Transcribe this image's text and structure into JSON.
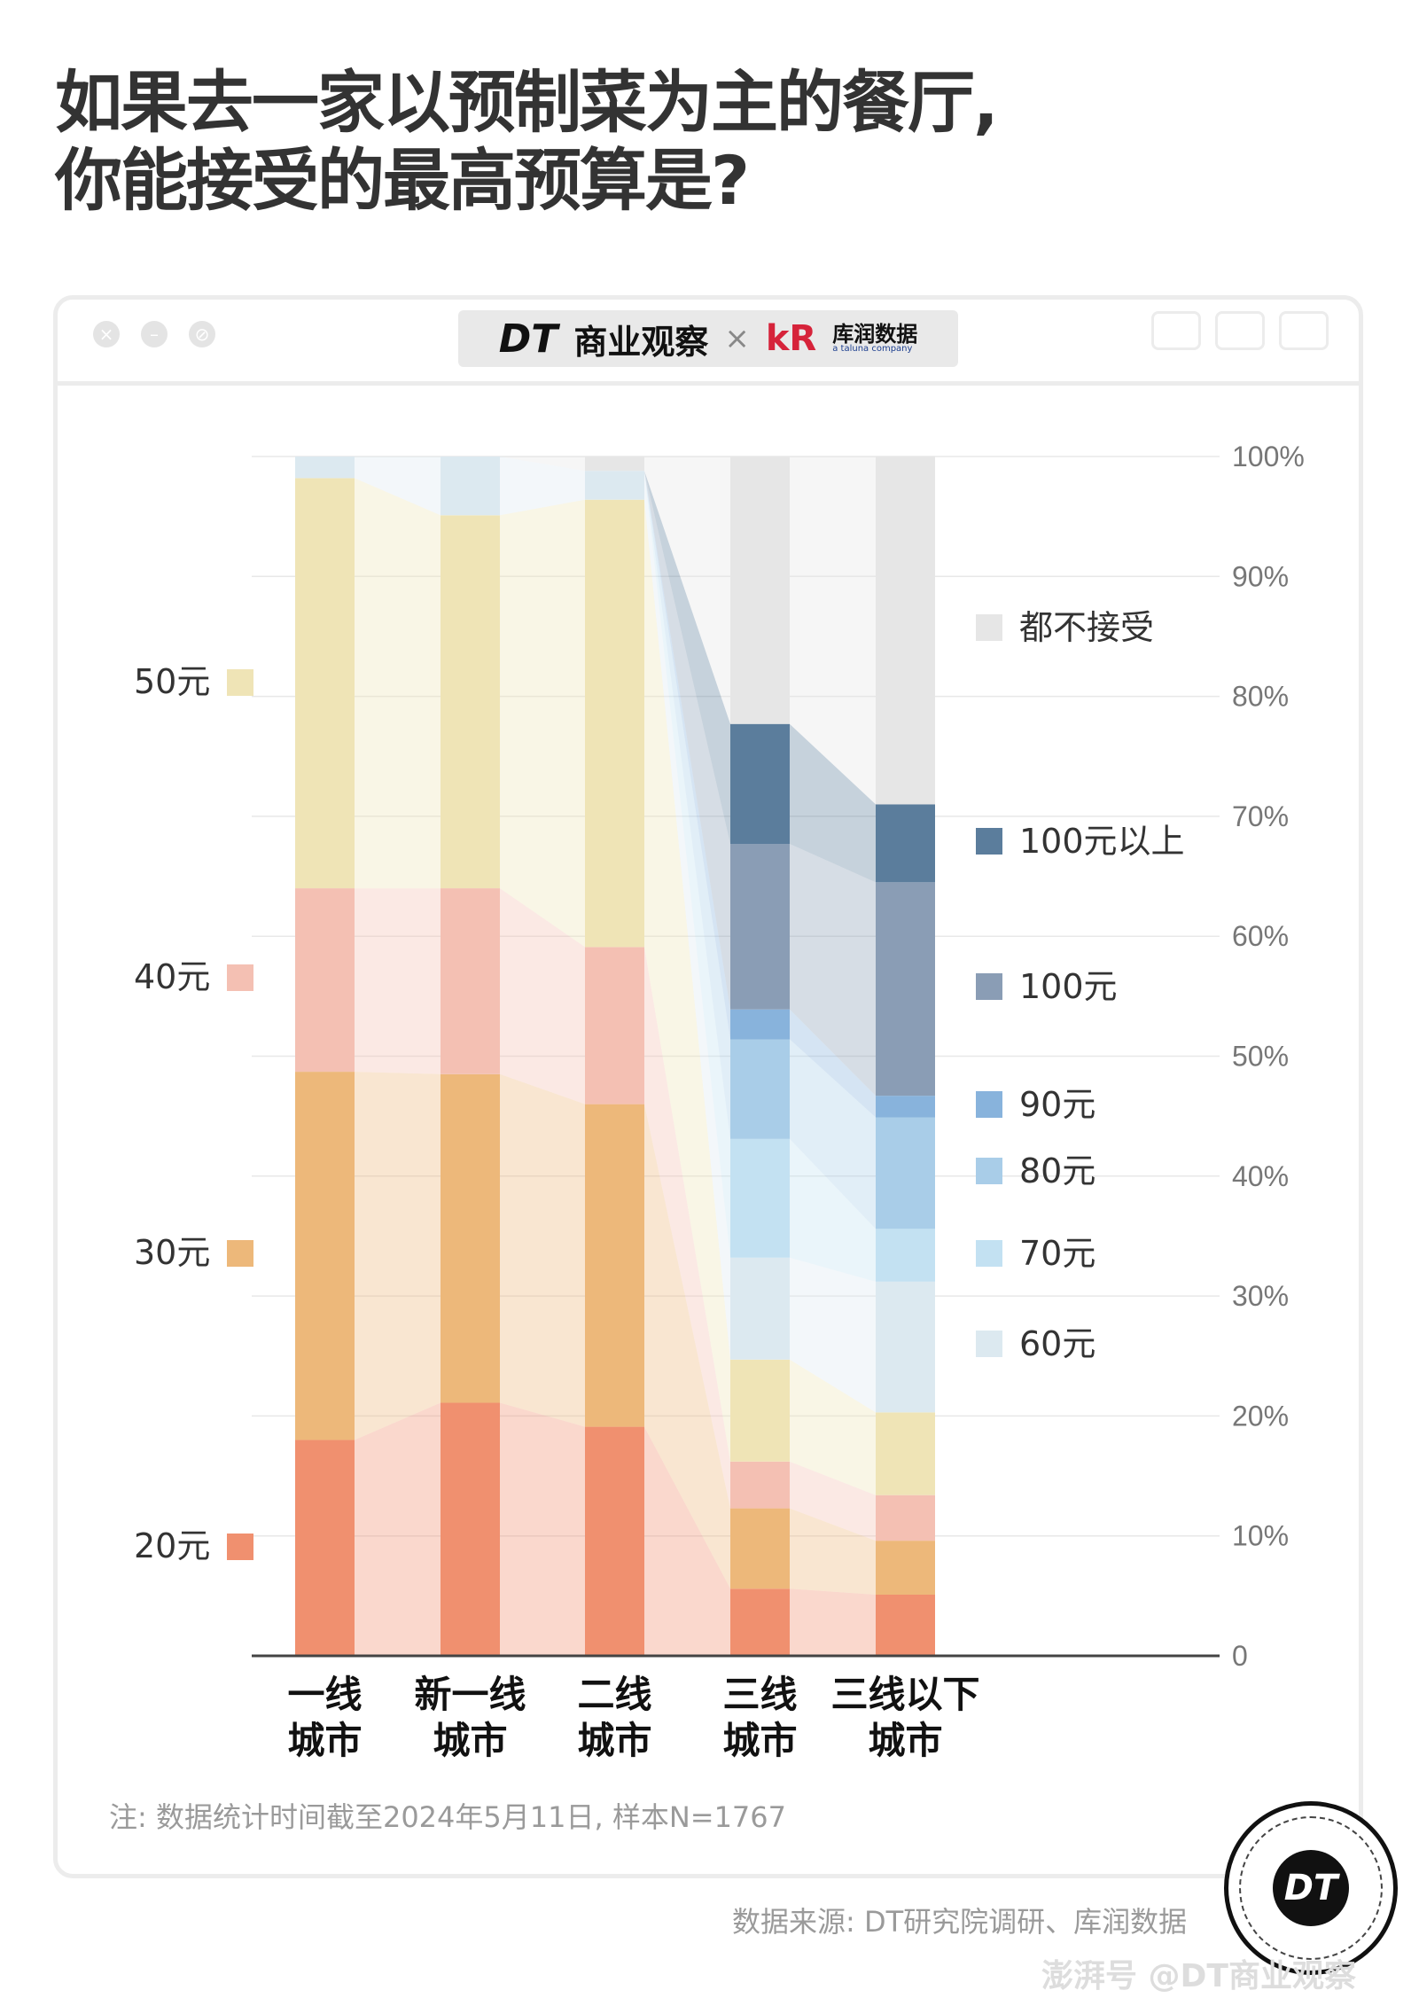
{
  "title": {
    "line1": "如果去一家以预制菜为主的餐厅,",
    "line2": "你能接受的最高预算是?"
  },
  "brand": {
    "dt": "DT",
    "dt_cn": "商业观察",
    "times": "×",
    "kr_logo": "kR",
    "kr_cn": "库润数据",
    "kr_en": "a taluna company"
  },
  "window_buttons": [
    "close-icon",
    "minimize-icon",
    "stop-icon"
  ],
  "tool_buttons": [
    "record-icon",
    "share-icon",
    "copy-icon"
  ],
  "chart_data": {
    "type": "bar",
    "stacked": true,
    "percent": true,
    "categories": [
      [
        "一线",
        "城市"
      ],
      [
        "新一线",
        "城市"
      ],
      [
        "二线",
        "城市"
      ],
      [
        "三线",
        "城市"
      ],
      [
        "三线以下",
        "城市"
      ]
    ],
    "ylim": [
      0,
      100
    ],
    "yticks": [
      "0",
      "10%",
      "20%",
      "30%",
      "40%",
      "50%",
      "60%",
      "70%",
      "80%",
      "90%",
      "100%"
    ],
    "grid": true,
    "series": [
      {
        "name": "20元",
        "color": "#f0906f",
        "values": [
          18.0,
          21.1,
          19.1,
          5.6,
          5.1
        ]
      },
      {
        "name": "30元",
        "color": "#edb87a",
        "values": [
          30.7,
          27.4,
          26.9,
          6.7,
          4.5
        ]
      },
      {
        "name": "40元",
        "color": "#f4c0b3",
        "values": [
          15.3,
          15.5,
          13.1,
          3.9,
          3.8
        ]
      },
      {
        "name": "50元",
        "color": "#efe4b6",
        "values": [
          34.2,
          31.1,
          37.3,
          8.5,
          6.9
        ]
      },
      {
        "name": "60元",
        "color": "#dce9f0",
        "values": [
          1.8,
          4.9,
          2.4,
          8.5,
          10.9
        ]
      },
      {
        "name": "70元",
        "color": "#c3e1f2",
        "values": [
          0,
          0,
          0,
          9.9,
          4.4
        ]
      },
      {
        "name": "80元",
        "color": "#a9cde8",
        "values": [
          0,
          0,
          0,
          8.3,
          9.3
        ]
      },
      {
        "name": "90元",
        "color": "#88b3dc",
        "values": [
          0,
          0,
          0,
          2.5,
          1.8
        ]
      },
      {
        "name": "100元",
        "color": "#8a9db5",
        "values": [
          0,
          0,
          0,
          13.8,
          17.8
        ]
      },
      {
        "name": "100元以上",
        "color": "#5b7d9c",
        "values": [
          0,
          0,
          0,
          10.0,
          6.5
        ]
      },
      {
        "name": "都不接受",
        "color": "#e6e6e6",
        "values": [
          0,
          0,
          1.2,
          22.3,
          29.0
        ]
      }
    ],
    "legend_left": [
      "50元",
      "40元",
      "30元",
      "20元"
    ],
    "legend_right": [
      "都不接受",
      "100元以上",
      "100元",
      "90元",
      "80元",
      "70元",
      "60元"
    ]
  },
  "note": "注: 数据统计时间截至2024年5月11日, 样本N=1767",
  "source": "数据来源: DT研究院调研、库润数据",
  "badge": "DT",
  "watermark": "澎湃号 @DT商业观察"
}
